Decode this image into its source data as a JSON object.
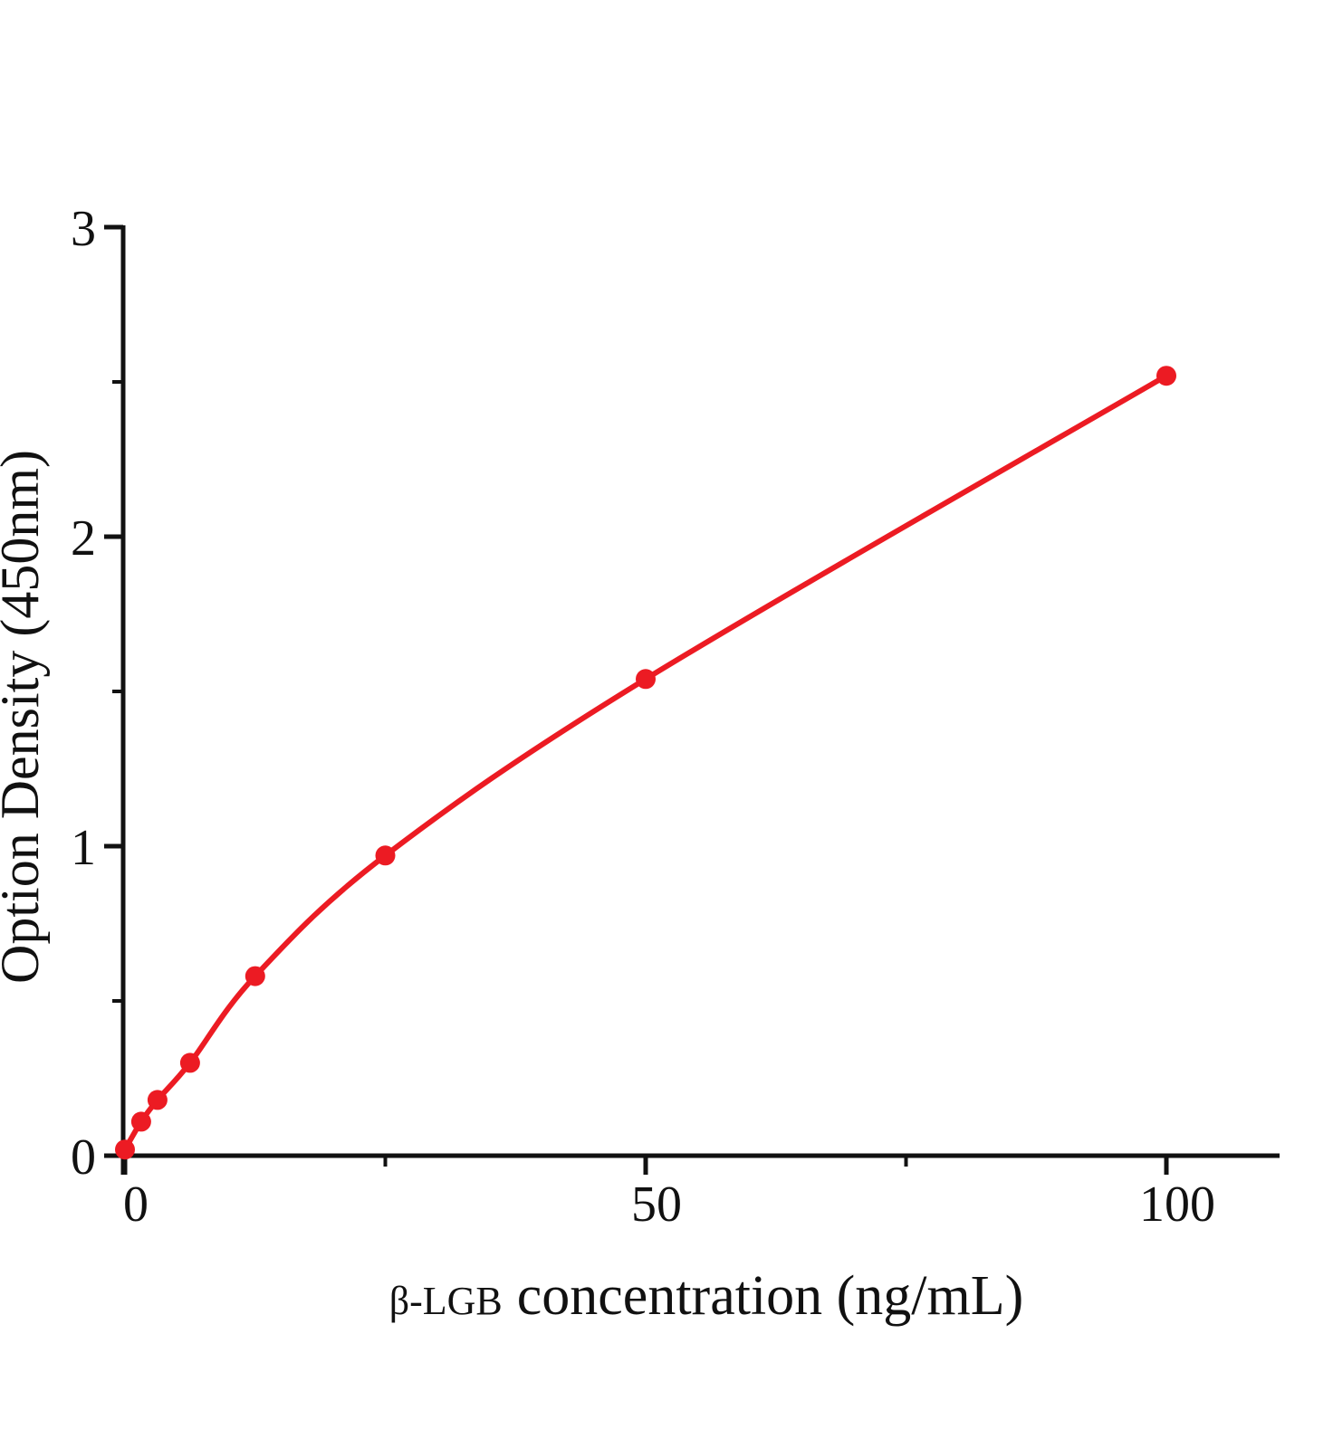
{
  "chart_data": {
    "type": "line",
    "title": "",
    "xlabel": "β-LGB concentration (ng/mL)",
    "xlabel_prefix": "β-LGB",
    "xlabel_main": "concentration (ng/mL)",
    "ylabel": "Option Density (450nm)",
    "x": [
      0,
      1.56,
      3.12,
      6.25,
      12.5,
      25,
      50,
      100
    ],
    "y": [
      0.02,
      0.11,
      0.18,
      0.3,
      0.58,
      0.97,
      1.54,
      2.52
    ],
    "xlim": [
      0,
      110
    ],
    "ylim": [
      0,
      3
    ],
    "x_major_ticks": [
      0,
      50,
      100
    ],
    "x_minor_ticks": [
      25,
      75
    ],
    "y_major_ticks": [
      0,
      1,
      2,
      3
    ],
    "y_minor_ticks": [
      0.5,
      1.5,
      2.5
    ],
    "grid": false,
    "legend": false,
    "line_color": "#ec1b23",
    "marker_color": "#ec1b23",
    "axis_color": "#111111"
  }
}
